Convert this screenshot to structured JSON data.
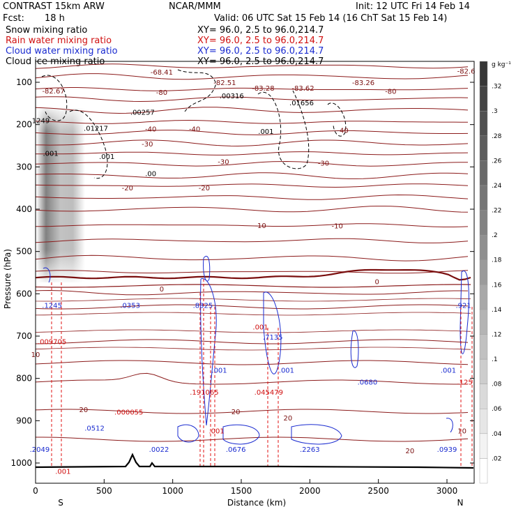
{
  "header": {
    "model": "CONTRAST 15km ARW",
    "org": "NCAR/MMM",
    "init": "Init: 12 UTC Fri 14 Feb 14",
    "fcst_label": "Fcst:",
    "fcst_value": "18 h",
    "valid": "Valid: 06 UTC Sat 15 Feb 14 (16 ChT Sat 15 Feb 14)"
  },
  "legend": [
    {
      "name": "Snow mixing ratio",
      "xy": "XY=  96.0,  2.5 to  96.0,214.7",
      "color": "#000000"
    },
    {
      "name": "Rain water mixing ratio",
      "xy": "XY=  96.0,  2.5 to  96.0,214.7",
      "color": "#d01010"
    },
    {
      "name": "Cloud water mixing ratio",
      "xy": "XY=  96.0,  2.5 to  96.0,214.7",
      "color": "#1a2bd0"
    },
    {
      "name": "Cloud ice mixing ratio",
      "xy": "XY=  96.0,  2.5 to  96.0,214.7",
      "color": "#000000"
    }
  ],
  "chart_data": {
    "type": "cross-section",
    "xlabel": "Distance (km)",
    "ylabel": "Pressure (hPa)",
    "xlim": [
      0,
      3200
    ],
    "ylim": [
      1030,
      50
    ],
    "x_ticks": [
      "0",
      "500",
      "1000",
      "1500",
      "2000",
      "2500",
      "3000"
    ],
    "y_ticks": [
      "100",
      "200",
      "300",
      "400",
      "500",
      "600",
      "700",
      "800",
      "900",
      "1000"
    ],
    "x_end_labels": {
      "left": "S",
      "right": "N"
    },
    "colorbar": {
      "unit": "g kg⁻¹",
      "ticks": [
        ".02",
        ".04",
        ".06",
        ".08",
        ".1",
        ".12",
        ".14",
        ".16",
        ".18",
        ".2",
        ".22",
        ".24",
        ".26",
        ".28",
        ".3",
        ".32"
      ]
    },
    "temperature_isotherms": [
      {
        "label": "-80",
        "p": 123,
        "x": 920
      },
      {
        "label": "-80",
        "p": 121,
        "x": 2590
      },
      {
        "label": "-40",
        "p": 210,
        "x": 840
      },
      {
        "label": "-40",
        "p": 210,
        "x": 1160
      },
      {
        "label": "-40",
        "p": 213,
        "x": 2240
      },
      {
        "label": "-30",
        "p": 245,
        "x": 815
      },
      {
        "label": "-30",
        "p": 287,
        "x": 1370
      },
      {
        "label": "-30",
        "p": 290,
        "x": 2100
      },
      {
        "label": "-20",
        "p": 349,
        "x": 670
      },
      {
        "label": "-20",
        "p": 349,
        "x": 1230
      },
      {
        "label": "-10",
        "p": 438,
        "x": 1640
      },
      {
        "label": "-10",
        "p": 439,
        "x": 2200
      },
      {
        "label": "0",
        "p": 588,
        "x": 920
      },
      {
        "label": "0",
        "p": 571,
        "x": 2490
      },
      {
        "label": "10",
        "p": 743,
        "x": 0
      },
      {
        "label": "10",
        "p": 923,
        "x": 3110
      },
      {
        "label": "20",
        "p": 873,
        "x": 350
      },
      {
        "label": "20",
        "p": 878,
        "x": 1460
      },
      {
        "label": "20",
        "p": 893,
        "x": 1840
      },
      {
        "label": "20",
        "p": 970,
        "x": 2730
      }
    ],
    "extrema_labels": [
      {
        "text": "-68.41",
        "p": 75,
        "x": 920,
        "color": "dark-red"
      },
      {
        "text": "-82.67",
        "p": 120,
        "x": 130,
        "color": "dark-red"
      },
      {
        "text": "-82.51",
        "p": 100,
        "x": 1380,
        "color": "dark-red"
      },
      {
        "text": "-83.28",
        "p": 113,
        "x": 1660,
        "color": "dark-red"
      },
      {
        "text": "-83.62",
        "p": 113,
        "x": 1950,
        "color": "dark-red"
      },
      {
        "text": "-83.26",
        "p": 100,
        "x": 2390,
        "color": "dark-red"
      },
      {
        "text": "-82.6",
        "p": 73,
        "x": 3140,
        "color": "dark-red"
      },
      {
        "text": ".001",
        "p": 678,
        "x": 1640,
        "color": "red"
      },
      {
        "text": ".009705",
        "p": 712,
        "x": 120,
        "color": "red"
      },
      {
        "text": ".000055",
        "p": 879,
        "x": 680,
        "color": "red"
      },
      {
        "text": ".191065",
        "p": 832,
        "x": 1230,
        "color": "red"
      },
      {
        "text": ".045479",
        "p": 832,
        "x": 1700,
        "color": "red"
      },
      {
        "text": ".001",
        "p": 923,
        "x": 1320,
        "color": "red"
      },
      {
        "text": ".001",
        "p": 1019,
        "x": 200,
        "color": "red"
      },
      {
        "text": ".125",
        "p": 808,
        "x": 3130,
        "color": "red"
      },
      {
        "text": ".1245",
        "p": 627,
        "x": 120,
        "color": "blue"
      },
      {
        "text": ".0353",
        "p": 627,
        "x": 690,
        "color": "blue"
      },
      {
        "text": ".8325",
        "p": 627,
        "x": 1220,
        "color": "blue"
      },
      {
        "text": ".7135",
        "p": 702,
        "x": 1730,
        "color": "blue"
      },
      {
        "text": ".001",
        "p": 780,
        "x": 1340,
        "color": "blue"
      },
      {
        "text": ".001",
        "p": 780,
        "x": 1830,
        "color": "blue"
      },
      {
        "text": ".0680",
        "p": 808,
        "x": 2420,
        "color": "blue"
      },
      {
        "text": ".001",
        "p": 780,
        "x": 3010,
        "color": "blue"
      },
      {
        "text": ".921",
        "p": 627,
        "x": 3120,
        "color": "blue"
      },
      {
        "text": ".2049",
        "p": 967,
        "x": 30,
        "color": "blue"
      },
      {
        "text": ".0512",
        "p": 917,
        "x": 430,
        "color": "blue"
      },
      {
        "text": ".0022",
        "p": 967,
        "x": 900,
        "color": "blue"
      },
      {
        "text": ".0676",
        "p": 967,
        "x": 1460,
        "color": "blue"
      },
      {
        "text": ".2263",
        "p": 967,
        "x": 2000,
        "color": "blue"
      },
      {
        "text": ".0939",
        "p": 967,
        "x": 3000,
        "color": "blue"
      },
      {
        "text": ".00316",
        "p": 131,
        "x": 1430,
        "color": "black"
      },
      {
        "text": ".01656",
        "p": 148,
        "x": 1940,
        "color": "black"
      },
      {
        "text": ".00257",
        "p": 170,
        "x": 780,
        "color": "black"
      },
      {
        "text": ".01217",
        "p": 208,
        "x": 440,
        "color": "black"
      },
      {
        "text": ".001",
        "p": 215,
        "x": 1680,
        "color": "black"
      },
      {
        "text": ".001",
        "p": 267,
        "x": 110,
        "color": "black"
      },
      {
        "text": ".001",
        "p": 275,
        "x": 520,
        "color": "black"
      },
      {
        "text": ".00",
        "p": 315,
        "x": 840,
        "color": "black"
      },
      {
        "text": ".1249",
        "p": 190,
        "x": 30,
        "color": "black"
      }
    ]
  }
}
